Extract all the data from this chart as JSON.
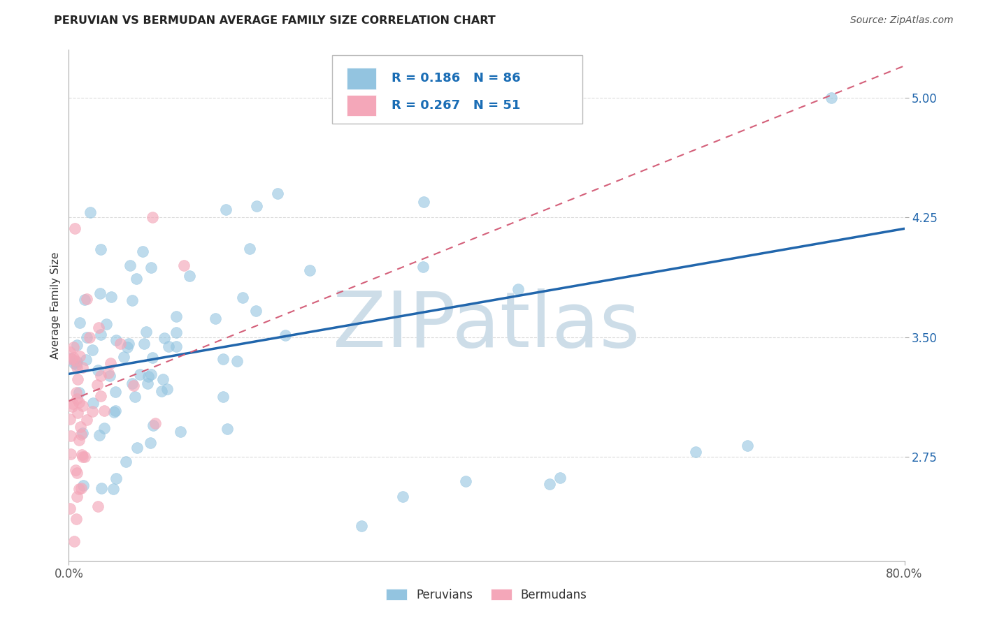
{
  "title": "PERUVIAN VS BERMUDAN AVERAGE FAMILY SIZE CORRELATION CHART",
  "source": "Source: ZipAtlas.com",
  "ylabel": "Average Family Size",
  "xlim": [
    0.0,
    0.8
  ],
  "ylim": [
    2.1,
    5.3
  ],
  "yticks": [
    2.75,
    3.5,
    4.25,
    5.0
  ],
  "xtick_labels": [
    "0.0%",
    "80.0%"
  ],
  "ytick_labels": [
    "2.75",
    "3.50",
    "4.25",
    "5.00"
  ],
  "blue_color": "#93c4e0",
  "pink_color": "#f4a7b9",
  "blue_line_color": "#2166ac",
  "pink_line_color": "#d4607a",
  "grid_color": "#cccccc",
  "watermark": "ZIPatlas",
  "watermark_color": "#cddde8",
  "legend_R_blue": "R = 0.186",
  "legend_N_blue": "N = 86",
  "legend_R_pink": "R = 0.267",
  "legend_N_pink": "N = 51",
  "legend_label_blue": "Peruvians",
  "legend_label_pink": "Bermudans",
  "blue_trend_x": [
    0.0,
    0.8
  ],
  "blue_trend_y": [
    3.27,
    4.18
  ],
  "pink_trend_x": [
    0.0,
    0.8
  ],
  "pink_trend_y": [
    3.1,
    5.2
  ],
  "title_fontsize": 11.5,
  "source_fontsize": 10,
  "tick_fontsize": 12,
  "ylabel_fontsize": 11
}
